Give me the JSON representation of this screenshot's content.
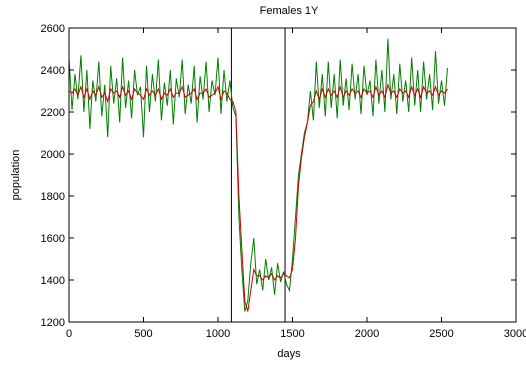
{
  "chart_data": {
    "type": "line",
    "title": "Females 1Y",
    "xlabel": "days",
    "ylabel": "population",
    "xlim": [
      0,
      3000
    ],
    "ylim": [
      1200,
      2600
    ],
    "x_ticks": [
      0,
      500,
      1000,
      1500,
      2000,
      2500,
      3000
    ],
    "y_ticks": [
      1200,
      1400,
      1600,
      1800,
      2000,
      2200,
      2400,
      2600
    ],
    "grid": false,
    "legend": "none",
    "vertical_markers": [
      1090,
      1450
    ],
    "series": [
      {
        "color": "#008000",
        "x": [
          0,
          20,
          40,
          60,
          80,
          100,
          120,
          140,
          160,
          180,
          200,
          220,
          240,
          260,
          280,
          300,
          320,
          340,
          360,
          380,
          400,
          420,
          440,
          460,
          480,
          500,
          520,
          540,
          560,
          580,
          600,
          620,
          640,
          660,
          680,
          700,
          720,
          740,
          760,
          780,
          800,
          820,
          840,
          860,
          880,
          900,
          920,
          940,
          960,
          980,
          1000,
          1020,
          1040,
          1060,
          1080,
          1100,
          1120,
          1140,
          1160,
          1180,
          1200,
          1220,
          1240,
          1260,
          1280,
          1300,
          1320,
          1340,
          1360,
          1380,
          1400,
          1420,
          1440,
          1460,
          1480,
          1500,
          1520,
          1540,
          1560,
          1580,
          1600,
          1620,
          1640,
          1660,
          1680,
          1700,
          1720,
          1740,
          1760,
          1780,
          1800,
          1820,
          1840,
          1860,
          1880,
          1900,
          1920,
          1940,
          1960,
          1980,
          2000,
          2020,
          2040,
          2060,
          2080,
          2100,
          2120,
          2140,
          2160,
          2180,
          2200,
          2220,
          2240,
          2260,
          2280,
          2300,
          2320,
          2340,
          2360,
          2380,
          2400,
          2420,
          2440,
          2460,
          2480,
          2500,
          2520,
          2540
        ],
        "y": [
          2460,
          2210,
          2380,
          2260,
          2470,
          2200,
          2400,
          2120,
          2350,
          2250,
          2440,
          2180,
          2330,
          2080,
          2420,
          2240,
          2360,
          2150,
          2460,
          2220,
          2350,
          2170,
          2400,
          2280,
          2320,
          2080,
          2420,
          2200,
          2380,
          2250,
          2450,
          2160,
          2340,
          2230,
          2400,
          2140,
          2360,
          2270,
          2450,
          2190,
          2330,
          2240,
          2420,
          2150,
          2370,
          2260,
          2440,
          2200,
          2350,
          2280,
          2460,
          2190,
          2400,
          2250,
          2350,
          2220,
          2180,
          1700,
          1450,
          1250,
          1300,
          1480,
          1600,
          1380,
          1450,
          1350,
          1500,
          1400,
          1460,
          1330,
          1480,
          1390,
          1440,
          1380,
          1350,
          1500,
          1700,
          1900,
          2000,
          2100,
          2150,
          2300,
          2160,
          2440,
          2220,
          2380,
          2180,
          2440,
          2220,
          2380,
          2170,
          2450,
          2230,
          2360,
          2210,
          2430,
          2260,
          2380,
          2190,
          2420,
          2280,
          2350,
          2180,
          2450,
          2240,
          2400,
          2200,
          2550,
          2260,
          2380,
          2190,
          2430,
          2250,
          2350,
          2200,
          2460,
          2230,
          2400,
          2200,
          2440,
          2260,
          2380,
          2210,
          2490,
          2240,
          2350,
          2230,
          2410
        ]
      },
      {
        "color": "#cc0000",
        "x": [
          0,
          20,
          40,
          60,
          80,
          100,
          120,
          140,
          160,
          180,
          200,
          220,
          240,
          260,
          280,
          300,
          320,
          340,
          360,
          380,
          400,
          420,
          440,
          460,
          480,
          500,
          520,
          540,
          560,
          580,
          600,
          620,
          640,
          660,
          680,
          700,
          720,
          740,
          760,
          780,
          800,
          820,
          840,
          860,
          880,
          900,
          920,
          940,
          960,
          980,
          1000,
          1020,
          1040,
          1060,
          1080,
          1100,
          1120,
          1140,
          1160,
          1180,
          1200,
          1220,
          1240,
          1260,
          1280,
          1300,
          1320,
          1340,
          1360,
          1380,
          1400,
          1420,
          1440,
          1460,
          1480,
          1500,
          1520,
          1540,
          1560,
          1580,
          1600,
          1620,
          1640,
          1660,
          1680,
          1700,
          1720,
          1740,
          1760,
          1780,
          1800,
          1820,
          1840,
          1860,
          1880,
          1900,
          1920,
          1940,
          1960,
          1980,
          2000,
          2020,
          2040,
          2060,
          2080,
          2100,
          2120,
          2140,
          2160,
          2180,
          2200,
          2220,
          2240,
          2260,
          2280,
          2300,
          2320,
          2340,
          2360,
          2380,
          2400,
          2420,
          2440,
          2460,
          2480,
          2500,
          2520,
          2540
        ],
        "y": [
          2300,
          2290,
          2310,
          2280,
          2320,
          2270,
          2310,
          2260,
          2300,
          2280,
          2320,
          2270,
          2290,
          2250,
          2310,
          2290,
          2300,
          2270,
          2320,
          2280,
          2300,
          2260,
          2310,
          2290,
          2280,
          2260,
          2310,
          2280,
          2300,
          2280,
          2310,
          2260,
          2290,
          2280,
          2310,
          2270,
          2290,
          2290,
          2320,
          2270,
          2280,
          2290,
          2310,
          2260,
          2290,
          2290,
          2310,
          2270,
          2280,
          2290,
          2320,
          2260,
          2300,
          2290,
          2260,
          2250,
          2200,
          1800,
          1550,
          1300,
          1250,
          1350,
          1450,
          1420,
          1420,
          1400,
          1420,
          1410,
          1430,
          1400,
          1420,
          1410,
          1430,
          1420,
          1410,
          1450,
          1600,
          1850,
          1980,
          2080,
          2150,
          2230,
          2250,
          2300,
          2260,
          2310,
          2270,
          2310,
          2280,
          2300,
          2270,
          2320,
          2270,
          2300,
          2280,
          2310,
          2290,
          2300,
          2270,
          2310,
          2290,
          2300,
          2270,
          2320,
          2280,
          2300,
          2270,
          2330,
          2290,
          2300,
          2270,
          2310,
          2290,
          2300,
          2270,
          2320,
          2280,
          2310,
          2270,
          2320,
          2290,
          2300,
          2280,
          2320,
          2280,
          2300,
          2290,
          2310
        ]
      }
    ]
  }
}
